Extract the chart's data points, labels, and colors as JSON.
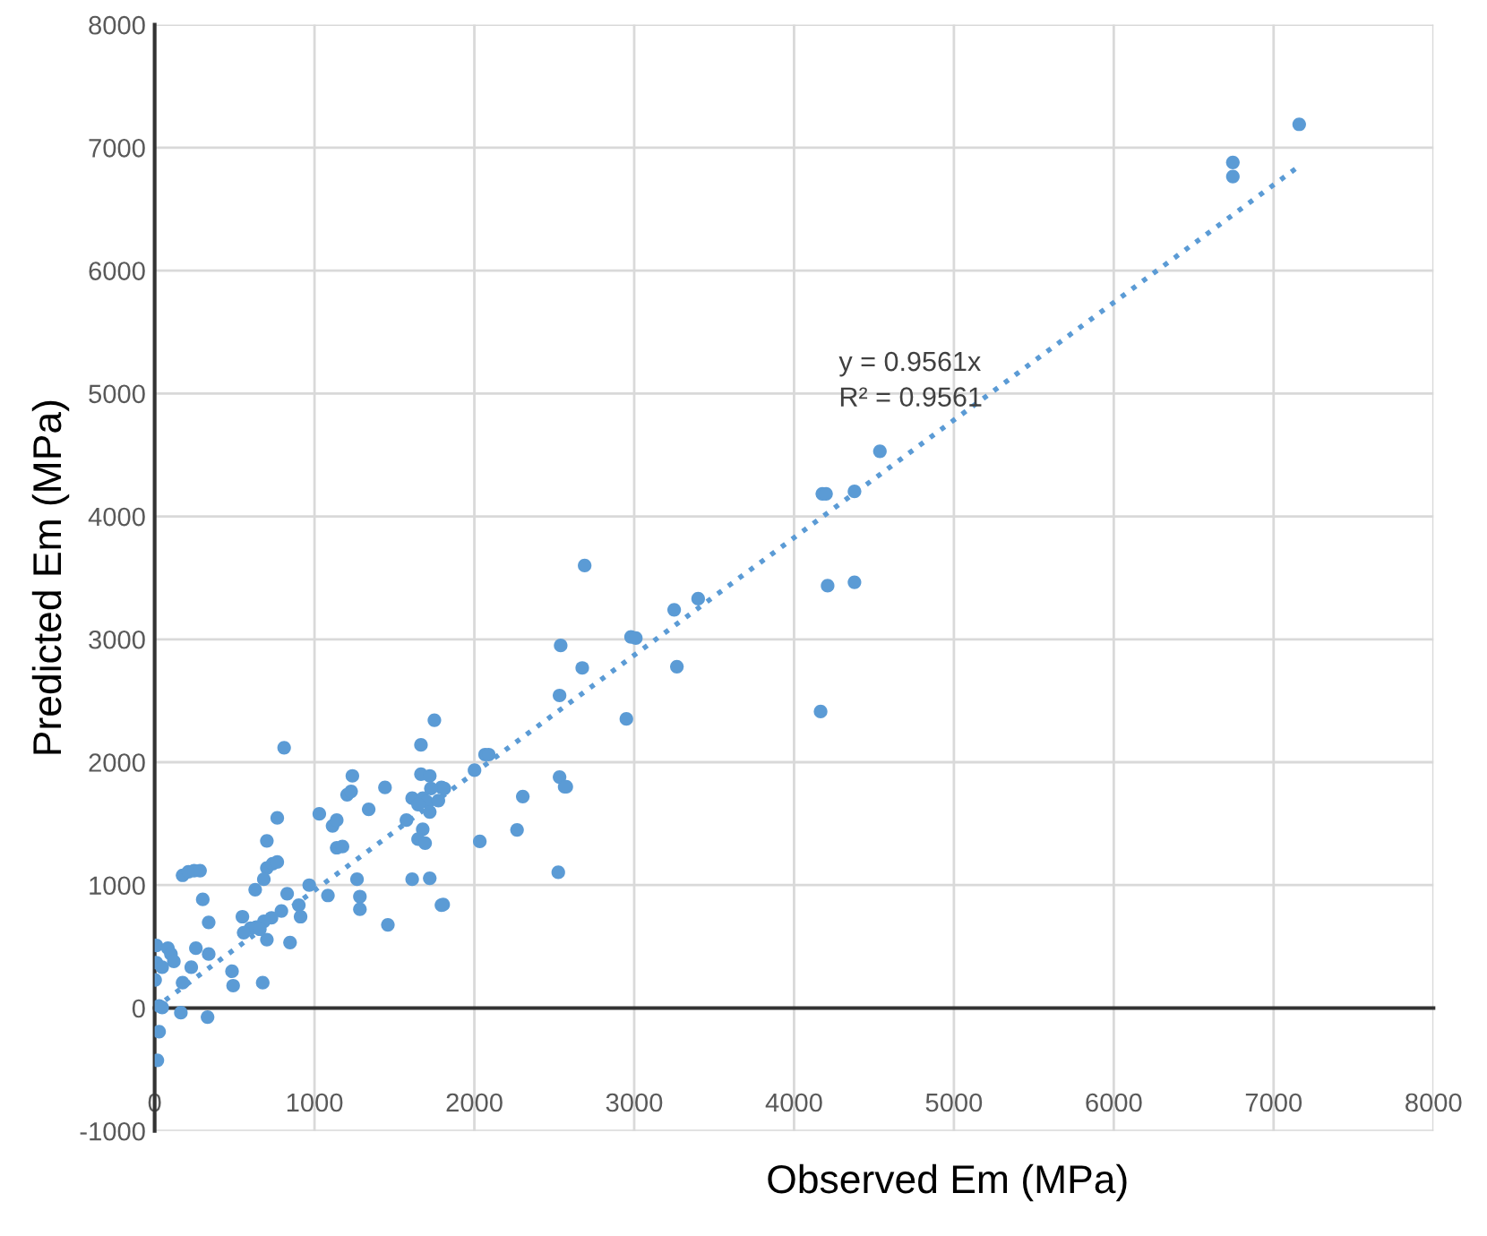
{
  "chart_data": {
    "type": "scatter",
    "xlabel": "Observed Em (MPa)",
    "ylabel": "Predicted Em (MPa)",
    "xlim": [
      0,
      8000
    ],
    "ylim": [
      -1000,
      8000
    ],
    "xticks": [
      0,
      1000,
      2000,
      3000,
      4000,
      5000,
      6000,
      7000,
      8000
    ],
    "yticks": [
      -1000,
      0,
      1000,
      2000,
      3000,
      4000,
      5000,
      6000,
      7000,
      8000
    ],
    "grid": true,
    "marker": "circle",
    "annotations": [
      "y = 0.9561x\nR² = 0.9561"
    ],
    "series": [
      {
        "color": "#5b9bd5",
        "x": [
          7160,
          6745,
          6745,
          4177,
          4200,
          4378,
          4537,
          4210,
          4378,
          4166,
          2690,
          2540,
          3250,
          3400,
          2980,
          3010,
          2675,
          3267,
          2533,
          2951,
          1794,
          2001,
          2067,
          2090,
          2533,
          2565,
          2575,
          2303,
          2267,
          2034,
          2525,
          1805,
          1750,
          810,
          1666,
          1666,
          1721,
          1237,
          1812,
          1441,
          1728,
          1204,
          1229,
          1611,
          1678,
          1703,
          1775,
          1648,
          1721,
          1339,
          1030,
          1575,
          1113,
          1139,
          767,
          1677,
          1648,
          1692,
          1139,
          1175,
          702,
          702,
          738,
          767,
          683,
          1266,
          1611,
          1721,
          967,
          629,
          829,
          301,
          1084,
          1284,
          1284,
          1794,
          1459,
          902,
          913,
          793,
          731,
          684,
          636,
          600,
          557,
          702,
          658,
          549,
          847,
          338,
          338,
          258,
          175,
          211,
          247,
          284,
          11,
          83,
          102,
          120,
          11,
          47,
          3,
          175,
          229,
          484,
          491,
          676,
          28,
          47,
          164,
          331,
          28,
          17
        ],
        "values": [
          7190,
          6880,
          6765,
          4184,
          4184,
          4203,
          4530,
          3436,
          3464,
          2412,
          3600,
          2950,
          3240,
          3330,
          3020,
          3010,
          2767,
          2777,
          2543,
          2352,
          1795,
          1935,
          2062,
          2062,
          1879,
          1800,
          1800,
          1721,
          1449,
          1356,
          1104,
          842,
          2342,
          2118,
          2141,
          1903,
          1889,
          1889,
          1786,
          1795,
          1786,
          1735,
          1763,
          1707,
          1707,
          1679,
          1688,
          1655,
          1595,
          1617,
          1580,
          1529,
          1482,
          1529,
          1547,
          1454,
          1374,
          1342,
          1304,
          1314,
          1360,
          1140,
          1174,
          1188,
          1048,
          1048,
          1048,
          1056,
          1000,
          963,
          930,
          884,
          916,
          907,
          804,
          837,
          677,
          837,
          743,
          790,
          734,
          706,
          659,
          650,
          613,
          557,
          641,
          743,
          533,
          697,
          439,
          487,
          1080,
          1108,
          1118,
          1118,
          509,
          487,
          439,
          379,
          369,
          332,
          229,
          206,
          332,
          299,
          182,
          206,
          18,
          4,
          -38,
          -74,
          -192,
          -425
        ]
      },
      {
        "type": "line",
        "line_style": "dotted",
        "marker": "none",
        "color": "#5b9bd5",
        "x": [
          0,
          7160
        ],
        "values": [
          0,
          6850
        ]
      }
    ]
  }
}
